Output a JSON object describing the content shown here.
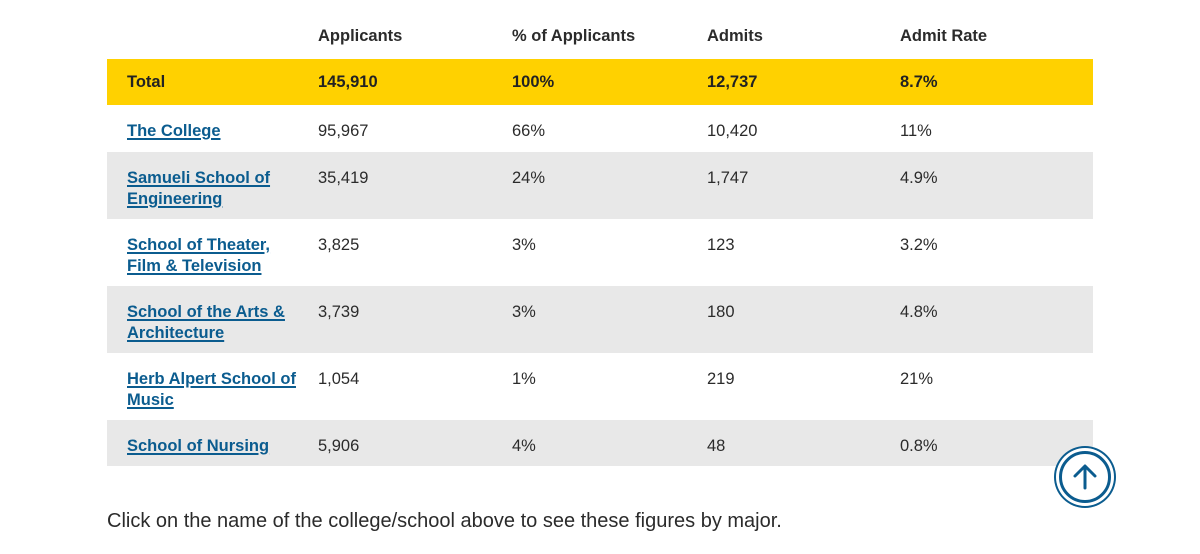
{
  "table": {
    "headers": [
      "",
      "Applicants",
      "% of Applicants",
      "Admits",
      "Admit Rate"
    ],
    "total": {
      "label": "Total",
      "applicants": "145,910",
      "pct": "100%",
      "admits": "12,737",
      "rate": "8.7%"
    },
    "rows": [
      {
        "name_line1": "The College",
        "name_line2": "",
        "applicants": "95,967",
        "pct": "66%",
        "admits": "10,420",
        "rate": "11%"
      },
      {
        "name_line1": "Samueli School of",
        "name_line2": "Engineering",
        "applicants": "35,419",
        "pct": "24%",
        "admits": "1,747",
        "rate": "4.9%"
      },
      {
        "name_line1": "School of Theater,",
        "name_line2": "Film & Television",
        "applicants": "3,825",
        "pct": "3%",
        "admits": "123",
        "rate": "3.2%"
      },
      {
        "name_line1": "School of the Arts &",
        "name_line2": "Architecture",
        "applicants": "3,739",
        "pct": "3%",
        "admits": "180",
        "rate": "4.8%"
      },
      {
        "name_line1": "Herb Alpert School of",
        "name_line2": "Music",
        "applicants": "1,054",
        "pct": "1%",
        "admits": "219",
        "rate": "21%"
      },
      {
        "name_line1": "School of Nursing",
        "name_line2": "",
        "applicants": "5,906",
        "pct": "4%",
        "admits": "48",
        "rate": "0.8%"
      }
    ]
  },
  "note": "Click on the name of the college/school above to see these figures by major.",
  "back_to_top": {
    "icon": "arrow-up-icon"
  },
  "colors": {
    "highlight": "#ffd100",
    "link": "#0b5c8f",
    "stripe": "#e8e8e8"
  }
}
